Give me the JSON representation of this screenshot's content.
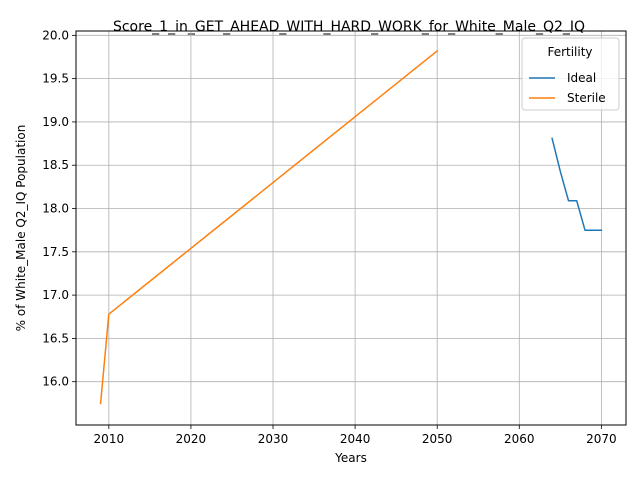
{
  "chart_data": {
    "type": "line",
    "title": "Score_1_in_GET_AHEAD_WITH_HARD_WORK_for_White_Male_Q2_IQ",
    "xlabel": "Years",
    "ylabel": "% of White_Male Q2_IQ Population",
    "xlim": [
      2006,
      2073
    ],
    "ylim": [
      15.5,
      20.05
    ],
    "x_ticks": [
      2010,
      2020,
      2030,
      2040,
      2050,
      2060,
      2070
    ],
    "y_ticks": [
      16.0,
      16.5,
      17.0,
      17.5,
      18.0,
      18.5,
      19.0,
      19.5,
      20.0
    ],
    "x_tick_labels": [
      "2010",
      "2020",
      "2030",
      "2040",
      "2050",
      "2060",
      "2070"
    ],
    "y_tick_labels": [
      "16.0",
      "16.5",
      "17.0",
      "17.5",
      "18.0",
      "18.5",
      "19.0",
      "19.5",
      "20.0"
    ],
    "grid": true,
    "legend": {
      "title": "Fertility",
      "placement": "top-right"
    },
    "series": [
      {
        "name": "Ideal",
        "color": "#1f77b4",
        "x": [
          2064,
          2065,
          2066,
          2067,
          2068,
          2069,
          2070
        ],
        "y": [
          18.81,
          18.43,
          18.09,
          18.09,
          17.75,
          17.75,
          17.75
        ]
      },
      {
        "name": "Sterile",
        "color": "#ff7f0e",
        "x": [
          2009,
          2010,
          2050
        ],
        "y": [
          15.75,
          16.78,
          19.82
        ]
      }
    ]
  }
}
